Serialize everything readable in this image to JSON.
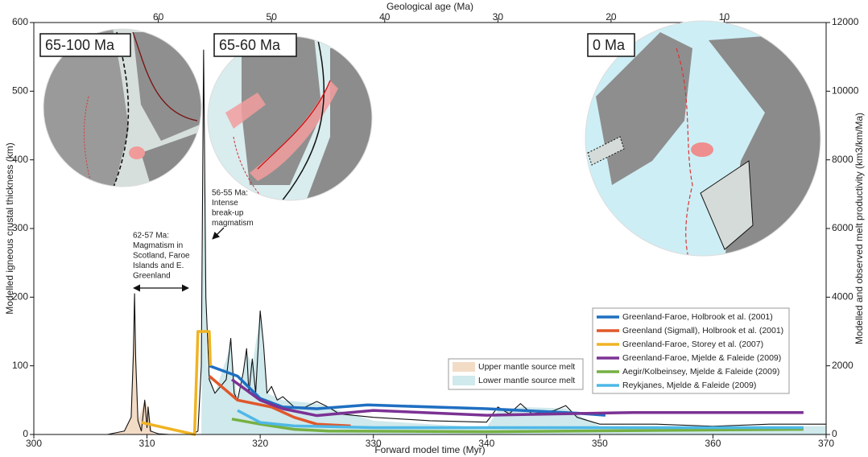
{
  "chart_data": {
    "type": "line",
    "xlabel": "Forward model time (Myr)",
    "x2label": "Geological age (Ma)",
    "ylabel": "Modelled igneous crustal thickness (km)",
    "y2label": "Modelled and observed melt productivity (km3/km/Ma)",
    "xlim": [
      300,
      370
    ],
    "xticks": [
      300,
      310,
      320,
      330,
      340,
      350,
      360,
      370
    ],
    "x2lim": [
      71,
      1
    ],
    "x2ticks": [
      60,
      50,
      40,
      30,
      20,
      10
    ],
    "ylim": [
      0,
      600
    ],
    "yticks": [
      0,
      100,
      200,
      300,
      400,
      500,
      600
    ],
    "y2lim": [
      0,
      12000
    ],
    "y2ticks": [
      0,
      2000,
      4000,
      6000,
      8000,
      10000,
      12000
    ],
    "inset_labels": [
      "65-100 Ma",
      "65-60 Ma",
      "0 Ma"
    ],
    "annotations": [
      [
        "62-57 Ma:",
        "Magmatism in",
        "Scotland, Faroe",
        "Islands and E.",
        "Greenland"
      ],
      [
        "56-55 Ma:",
        "Intense",
        "break-up",
        "magmatism"
      ]
    ],
    "series": [
      {
        "name": "Upper mantle source melt",
        "type": "area",
        "color": "#f3dcc6",
        "x": [
          306.5,
          308,
          308.6,
          308.9,
          309.2,
          309.8,
          310.1,
          310.5,
          311
        ],
        "values": [
          0,
          5,
          25,
          200,
          20,
          50,
          40,
          2,
          0
        ]
      },
      {
        "name": "Lower mantle source melt",
        "type": "area",
        "color": "#cfe9ec",
        "x": [
          314.8,
          315,
          315.3,
          316,
          317.4,
          318,
          318.8,
          319.3,
          320,
          320.6,
          322,
          325,
          330,
          340,
          341,
          343,
          347,
          350,
          370
        ],
        "values": [
          0,
          400,
          100,
          60,
          130,
          50,
          120,
          100,
          175,
          60,
          50,
          45,
          20,
          10,
          35,
          40,
          38,
          12,
          12
        ]
      },
      {
        "type": "line",
        "color": "#111111",
        "x": [
          306.5,
          308,
          308.6,
          308.8,
          308.9,
          309.0,
          309.2,
          309.5,
          309.8,
          310,
          310.1,
          310.3,
          311,
          312,
          314,
          314.5,
          314.8,
          315,
          315.2,
          315.5,
          316,
          317,
          317.4,
          317.7,
          318,
          318.5,
          318.8,
          319,
          319.3,
          319.6,
          319.9,
          320,
          320.3,
          320.6,
          321,
          321.5,
          322,
          323,
          324,
          325,
          326,
          327,
          330,
          335,
          340,
          341,
          342,
          343,
          344,
          346,
          347,
          348,
          350,
          355,
          360,
          365,
          370
        ],
        "values": [
          0,
          5,
          25,
          120,
          205,
          110,
          20,
          5,
          50,
          10,
          40,
          5,
          1,
          0,
          0,
          5,
          100,
          560,
          200,
          80,
          60,
          80,
          140,
          60,
          50,
          90,
          125,
          60,
          110,
          60,
          150,
          180,
          130,
          60,
          70,
          50,
          55,
          40,
          40,
          48,
          40,
          30,
          25,
          20,
          18,
          40,
          30,
          45,
          30,
          35,
          42,
          25,
          15,
          15,
          12,
          15,
          15
        ]
      },
      {
        "name": "Greenland-Faroe, Holbrook et al. (2001)",
        "type": "line",
        "axis": "y2",
        "color": "#1f6fc1",
        "x": [
          315.5,
          318,
          320,
          322,
          325,
          329.5,
          340,
          348,
          350.5
        ],
        "values": [
          2000,
          1700,
          1050,
          800,
          750,
          860,
          750,
          620,
          560
        ]
      },
      {
        "name": "Greenland (Sigmall), Holbrook et al. (2001)",
        "type": "line",
        "axis": "y2",
        "color": "#e0572a",
        "x": [
          315.5,
          318,
          321,
          323,
          325,
          328
        ],
        "values": [
          1700,
          1000,
          800,
          500,
          300,
          250
        ]
      },
      {
        "name": "Greenland-Faroe, Storey et al. (2007)",
        "type": "line",
        "axis": "y2",
        "color": "#f0b323",
        "x": [
          309.5,
          314.2,
          314.5,
          315.5,
          315.6
        ],
        "values": [
          350,
          0,
          3000,
          3000,
          2000
        ]
      },
      {
        "name": "Greenland-Faroe, Mjelde & Faleide (2009)",
        "type": "line",
        "axis": "y2",
        "color": "#7b3294",
        "x": [
          317.5,
          320,
          322,
          325,
          330,
          340,
          353,
          368
        ],
        "values": [
          1600,
          1000,
          750,
          550,
          700,
          560,
          640,
          640
        ]
      },
      {
        "name": "Aegir/Kolbeinsey, Mjelde & Faleide (2009)",
        "type": "line",
        "axis": "y2",
        "color": "#76b043",
        "x": [
          317.5,
          320,
          323,
          326,
          340,
          368
        ],
        "values": [
          450,
          300,
          150,
          100,
          80,
          150
        ]
      },
      {
        "name": "Reykjanes, Mjelde & Faleide (2009)",
        "type": "line",
        "axis": "y2",
        "color": "#4fb8e6",
        "x": [
          318,
          320,
          323,
          330,
          368
        ],
        "values": [
          700,
          350,
          250,
          200,
          200
        ]
      }
    ]
  }
}
